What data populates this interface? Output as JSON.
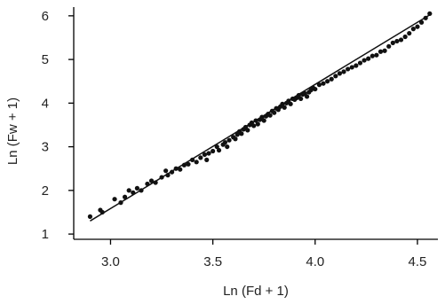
{
  "chart_data": {
    "type": "scatter",
    "title": "",
    "xlabel": "Ln (Fd + 1)",
    "ylabel": "Ln (Fw + 1)",
    "xlim": [
      2.82,
      4.6
    ],
    "ylim": [
      0.88,
      6.2
    ],
    "xticks": [
      3.0,
      3.5,
      4.0,
      4.5
    ],
    "xtick_labels": [
      "3.0",
      "3.5",
      "4.0",
      "4.5"
    ],
    "yticks": [
      1,
      2,
      3,
      4,
      5,
      6
    ],
    "ytick_labels": [
      "1",
      "2",
      "3",
      "4",
      "5",
      "6"
    ],
    "grid": false,
    "legend": "none",
    "fit_line": {
      "x": [
        2.9,
        4.57
      ],
      "y": [
        1.3,
        6.05
      ]
    },
    "series": [
      {
        "points": [
          [
            2.9,
            1.4
          ],
          [
            2.95,
            1.55
          ],
          [
            2.96,
            1.5
          ],
          [
            3.02,
            1.8
          ],
          [
            3.05,
            1.72
          ],
          [
            3.07,
            1.85
          ],
          [
            3.09,
            2.0
          ],
          [
            3.11,
            1.95
          ],
          [
            3.13,
            2.05
          ],
          [
            3.15,
            2.0
          ],
          [
            3.18,
            2.15
          ],
          [
            3.2,
            2.22
          ],
          [
            3.22,
            2.18
          ],
          [
            3.25,
            2.3
          ],
          [
            3.27,
            2.45
          ],
          [
            3.28,
            2.35
          ],
          [
            3.3,
            2.42
          ],
          [
            3.32,
            2.5
          ],
          [
            3.34,
            2.48
          ],
          [
            3.36,
            2.58
          ],
          [
            3.38,
            2.6
          ],
          [
            3.4,
            2.7
          ],
          [
            3.42,
            2.65
          ],
          [
            3.44,
            2.75
          ],
          [
            3.46,
            2.82
          ],
          [
            3.47,
            2.7
          ],
          [
            3.48,
            2.85
          ],
          [
            3.5,
            2.9
          ],
          [
            3.52,
            3.0
          ],
          [
            3.53,
            2.92
          ],
          [
            3.55,
            3.05
          ],
          [
            3.56,
            3.1
          ],
          [
            3.57,
            3.0
          ],
          [
            3.58,
            3.15
          ],
          [
            3.6,
            3.22
          ],
          [
            3.61,
            3.18
          ],
          [
            3.62,
            3.28
          ],
          [
            3.63,
            3.35
          ],
          [
            3.64,
            3.3
          ],
          [
            3.65,
            3.4
          ],
          [
            3.66,
            3.45
          ],
          [
            3.67,
            3.38
          ],
          [
            3.68,
            3.5
          ],
          [
            3.69,
            3.55
          ],
          [
            3.7,
            3.48
          ],
          [
            3.71,
            3.6
          ],
          [
            3.72,
            3.52
          ],
          [
            3.73,
            3.62
          ],
          [
            3.74,
            3.68
          ],
          [
            3.75,
            3.6
          ],
          [
            3.76,
            3.7
          ],
          [
            3.77,
            3.75
          ],
          [
            3.78,
            3.72
          ],
          [
            3.79,
            3.82
          ],
          [
            3.8,
            3.78
          ],
          [
            3.81,
            3.88
          ],
          [
            3.82,
            3.85
          ],
          [
            3.83,
            3.92
          ],
          [
            3.84,
            3.98
          ],
          [
            3.85,
            3.9
          ],
          [
            3.86,
            4.0
          ],
          [
            3.87,
            4.05
          ],
          [
            3.88,
            3.98
          ],
          [
            3.89,
            4.1
          ],
          [
            3.9,
            4.08
          ],
          [
            3.91,
            4.12
          ],
          [
            3.92,
            4.18
          ],
          [
            3.93,
            4.1
          ],
          [
            3.94,
            4.2
          ],
          [
            3.95,
            4.22
          ],
          [
            3.96,
            4.15
          ],
          [
            3.97,
            4.25
          ],
          [
            3.98,
            4.3
          ],
          [
            3.99,
            4.35
          ],
          [
            4.0,
            4.32
          ],
          [
            4.02,
            4.42
          ],
          [
            4.04,
            4.45
          ],
          [
            4.06,
            4.5
          ],
          [
            4.08,
            4.55
          ],
          [
            4.1,
            4.62
          ],
          [
            4.12,
            4.68
          ],
          [
            4.14,
            4.72
          ],
          [
            4.16,
            4.78
          ],
          [
            4.18,
            4.82
          ],
          [
            4.2,
            4.86
          ],
          [
            4.22,
            4.92
          ],
          [
            4.24,
            4.98
          ],
          [
            4.26,
            5.02
          ],
          [
            4.28,
            5.08
          ],
          [
            4.3,
            5.1
          ],
          [
            4.32,
            5.18
          ],
          [
            4.34,
            5.2
          ],
          [
            4.36,
            5.3
          ],
          [
            4.38,
            5.38
          ],
          [
            4.4,
            5.42
          ],
          [
            4.42,
            5.45
          ],
          [
            4.44,
            5.52
          ],
          [
            4.46,
            5.6
          ],
          [
            4.48,
            5.7
          ],
          [
            4.5,
            5.75
          ],
          [
            4.52,
            5.85
          ],
          [
            4.54,
            5.95
          ],
          [
            4.56,
            6.05
          ]
        ]
      }
    ]
  }
}
